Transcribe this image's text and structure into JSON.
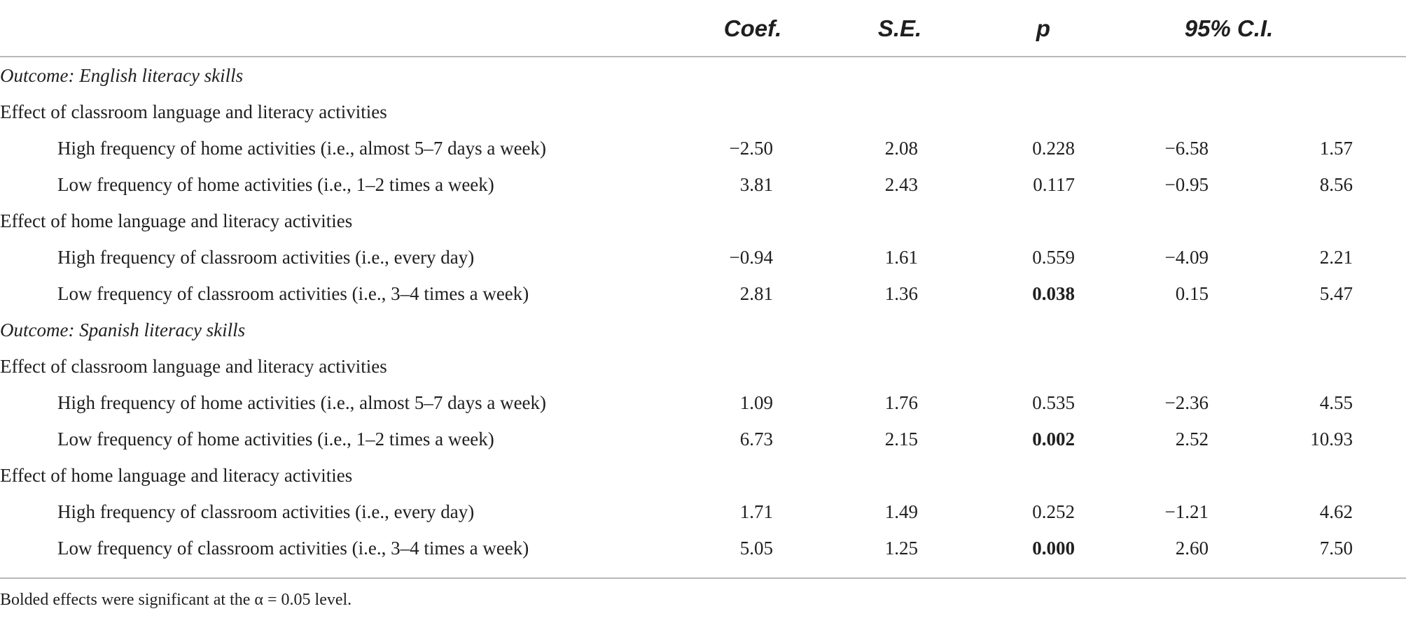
{
  "headers": {
    "coef": "Coef.",
    "se": "S.E.",
    "p": "p",
    "ci": "95% C.I."
  },
  "rows": [
    {
      "label": "Outcome: English literacy skills",
      "style": "section"
    },
    {
      "label": "Effect of classroom language and literacy activities",
      "style": "group"
    },
    {
      "label": "High frequency of home activities (i.e., almost 5–7 days a week)",
      "style": "item",
      "coef": "−2.50",
      "se": "2.08",
      "p": "0.228",
      "p_bold": false,
      "ci_low": "−6.58",
      "ci_high": "1.57"
    },
    {
      "label": "Low frequency of home activities (i.e., 1–2 times a week)",
      "style": "item",
      "coef": "3.81",
      "se": "2.43",
      "p": "0.117",
      "p_bold": false,
      "ci_low": "−0.95",
      "ci_high": "8.56"
    },
    {
      "label": "Effect of home language and literacy activities",
      "style": "group"
    },
    {
      "label": "High frequency of classroom activities (i.e., every day)",
      "style": "item",
      "coef": "−0.94",
      "se": "1.61",
      "p": "0.559",
      "p_bold": false,
      "ci_low": "−4.09",
      "ci_high": "2.21"
    },
    {
      "label": "Low frequency of classroom activities (i.e., 3–4 times a week)",
      "style": "item",
      "coef": "2.81",
      "se": "1.36",
      "p": "0.038",
      "p_bold": true,
      "ci_low": "0.15",
      "ci_high": "5.47"
    },
    {
      "label": "Outcome: Spanish literacy skills",
      "style": "section"
    },
    {
      "label": "Effect of classroom language and literacy activities",
      "style": "group"
    },
    {
      "label": "High frequency of home activities (i.e., almost 5–7 days a week)",
      "style": "item",
      "coef": "1.09",
      "se": "1.76",
      "p": "0.535",
      "p_bold": false,
      "ci_low": "−2.36",
      "ci_high": "4.55"
    },
    {
      "label": "Low frequency of home activities (i.e., 1–2 times a week)",
      "style": "item",
      "coef": "6.73",
      "se": "2.15",
      "p": "0.002",
      "p_bold": true,
      "ci_low": "2.52",
      "ci_high": "10.93"
    },
    {
      "label": "Effect of home language and literacy activities",
      "style": "group"
    },
    {
      "label": "High frequency of classroom activities (i.e., every day)",
      "style": "item",
      "coef": "1.71",
      "se": "1.49",
      "p": "0.252",
      "p_bold": false,
      "ci_low": "−1.21",
      "ci_high": "4.62"
    },
    {
      "label": "Low frequency of classroom activities (i.e., 3–4 times a week)",
      "style": "item",
      "coef": "5.05",
      "se": "1.25",
      "p": "0.000",
      "p_bold": true,
      "ci_low": "2.60",
      "ci_high": "7.50"
    }
  ],
  "footnote": "Bolded effects were significant at the α = 0.05 level."
}
